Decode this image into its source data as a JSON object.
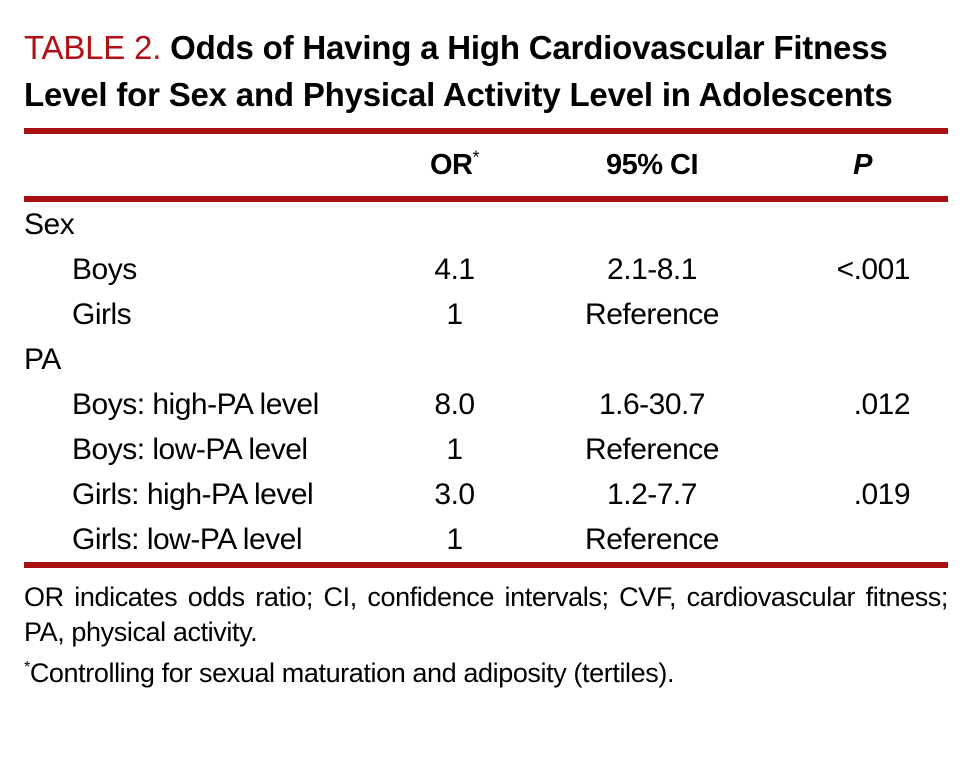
{
  "colors": {
    "accent": "#A80E12",
    "title_red": "#B11116"
  },
  "title": {
    "label": "TABLE 2.",
    "text": " Odds of Having a High Cardiovascular Fitness Level for Sex and Physical Activity Level in Adolescents"
  },
  "table": {
    "header": {
      "or": "OR",
      "or_sup": "*",
      "ci": "95% CI",
      "p": "P"
    },
    "rows": [
      {
        "label": "Sex",
        "or": "",
        "ci": "",
        "p": ""
      },
      {
        "label": "Boys",
        "or": "4.1",
        "ci": "2.1-8.1",
        "p": "<.001"
      },
      {
        "label": "Girls",
        "or": "1",
        "ci": "Reference",
        "p": ""
      },
      {
        "label": "PA",
        "or": "",
        "ci": "",
        "p": ""
      },
      {
        "label": "Boys: high-PA level",
        "or": "8.0",
        "ci": "1.6-30.7",
        "p": ".012"
      },
      {
        "label": "Boys: low-PA level",
        "or": "1",
        "ci": "Reference",
        "p": ""
      },
      {
        "label": "Girls: high-PA level",
        "or": "3.0",
        "ci": "1.2-7.7",
        "p": ".019"
      },
      {
        "label": "Girls: low-PA level",
        "or": "1",
        "ci": "Reference",
        "p": ""
      }
    ]
  },
  "footnotes": {
    "abbreviations": "OR indicates odds ratio; CI, confidence intervals; CVF, cardiovascular fitness; PA, physical activity.",
    "asterisk_symbol": "*",
    "asterisk_text": "Controlling for sexual maturation and adiposity (tertiles)."
  }
}
